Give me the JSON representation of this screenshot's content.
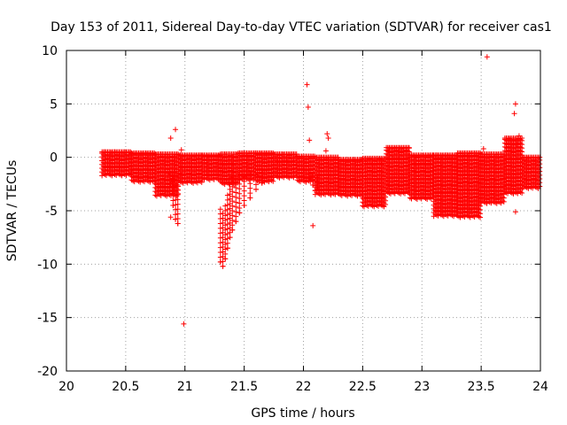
{
  "chart_data": {
    "type": "scatter",
    "title": "Day 153 of 2011, Sidereal Day-to-day VTEC variation (SDTVAR) for receiver cas1",
    "xlabel": "GPS time / hours",
    "ylabel": "SDTVAR / TECUs",
    "xlim": [
      20,
      24
    ],
    "ylim": [
      -20,
      10
    ],
    "xticks": [
      "20",
      "20.5",
      "21",
      "21.5",
      "22",
      "22.5",
      "23",
      "23.5",
      "24"
    ],
    "yticks": [
      "10",
      "5",
      "0",
      "-5",
      "-10",
      "-15",
      "-20"
    ],
    "grid": true,
    "marker": "+",
    "series_color": "#ff0000",
    "series": [
      {
        "name": "cas1",
        "bands": [
          {
            "x_start": 20.3,
            "x_end": 20.55,
            "upper": 0.5,
            "lower": -1.6
          },
          {
            "x_start": 20.55,
            "x_end": 20.75,
            "upper": 0.4,
            "lower": -2.2
          },
          {
            "x_start": 20.75,
            "x_end": 20.95,
            "upper": 0.3,
            "lower": -3.5
          },
          {
            "x_start": 20.95,
            "x_end": 21.15,
            "upper": 0.2,
            "lower": -2.3
          },
          {
            "x_start": 21.15,
            "x_end": 21.3,
            "upper": 0.2,
            "lower": -2.0
          },
          {
            "x_start": 21.3,
            "x_end": 21.45,
            "upper": 0.3,
            "lower": -2.4
          },
          {
            "x_start": 21.45,
            "x_end": 21.6,
            "upper": 0.4,
            "lower": -2.0
          },
          {
            "x_start": 21.6,
            "x_end": 21.75,
            "upper": 0.4,
            "lower": -2.2
          },
          {
            "x_start": 21.75,
            "x_end": 21.95,
            "upper": 0.3,
            "lower": -1.8
          },
          {
            "x_start": 21.95,
            "x_end": 22.1,
            "upper": 0.1,
            "lower": -2.2
          },
          {
            "x_start": 22.1,
            "x_end": 22.3,
            "upper": 0.0,
            "lower": -3.4
          },
          {
            "x_start": 22.3,
            "x_end": 22.5,
            "upper": -0.2,
            "lower": -3.5
          },
          {
            "x_start": 22.5,
            "x_end": 22.7,
            "upper": -0.1,
            "lower": -4.5
          },
          {
            "x_start": 22.7,
            "x_end": 22.9,
            "upper": 0.9,
            "lower": -3.3
          },
          {
            "x_start": 22.9,
            "x_end": 23.1,
            "upper": 0.2,
            "lower": -3.8
          },
          {
            "x_start": 23.1,
            "x_end": 23.3,
            "upper": 0.2,
            "lower": -5.4
          },
          {
            "x_start": 23.3,
            "x_end": 23.5,
            "upper": 0.4,
            "lower": -5.5
          },
          {
            "x_start": 23.5,
            "x_end": 23.7,
            "upper": 0.3,
            "lower": -4.2
          },
          {
            "x_start": 23.7,
            "x_end": 23.85,
            "upper": 1.8,
            "lower": -3.3
          },
          {
            "x_start": 23.85,
            "x_end": 24.0,
            "upper": 0.0,
            "lower": -2.8
          }
        ],
        "dips": [
          {
            "x": [
              20.88,
              20.9,
              20.92,
              20.94
            ],
            "y": [
              -2.5,
              -4.5,
              -5.8,
              -6.2
            ]
          },
          {
            "x": [
              21.3,
              21.32,
              21.34,
              21.36,
              21.38,
              21.4,
              21.43,
              21.46,
              21.5,
              21.55,
              21.6,
              21.65
            ],
            "y": [
              -9.8,
              -10.2,
              -9.5,
              -8.5,
              -7.5,
              -6.8,
              -6.0,
              -5.2,
              -4.5,
              -3.8,
              -3.0,
              -2.4
            ]
          },
          {
            "x": [
              22.05,
              22.08,
              22.1,
              22.12
            ],
            "y": [
              -2.0,
              -2.6,
              -3.1,
              -2.8
            ]
          }
        ],
        "outliers": [
          {
            "x": 20.88,
            "y": 1.8
          },
          {
            "x": 20.92,
            "y": 2.6
          },
          {
            "x": 20.97,
            "y": 0.7
          },
          {
            "x": 20.88,
            "y": -5.6
          },
          {
            "x": 20.99,
            "y": -15.6
          },
          {
            "x": 22.03,
            "y": 6.8
          },
          {
            "x": 22.04,
            "y": 4.7
          },
          {
            "x": 22.05,
            "y": 1.6
          },
          {
            "x": 22.08,
            "y": -6.4
          },
          {
            "x": 22.2,
            "y": 2.2
          },
          {
            "x": 22.21,
            "y": 1.8
          },
          {
            "x": 22.19,
            "y": 0.6
          },
          {
            "x": 23.52,
            "y": 0.8
          },
          {
            "x": 23.55,
            "y": 9.4
          },
          {
            "x": 23.78,
            "y": 4.1
          },
          {
            "x": 23.79,
            "y": 5.0
          },
          {
            "x": 23.79,
            "y": -5.1
          },
          {
            "x": 23.8,
            "y": 1.2
          },
          {
            "x": 23.82,
            "y": 2.0
          }
        ]
      }
    ]
  }
}
